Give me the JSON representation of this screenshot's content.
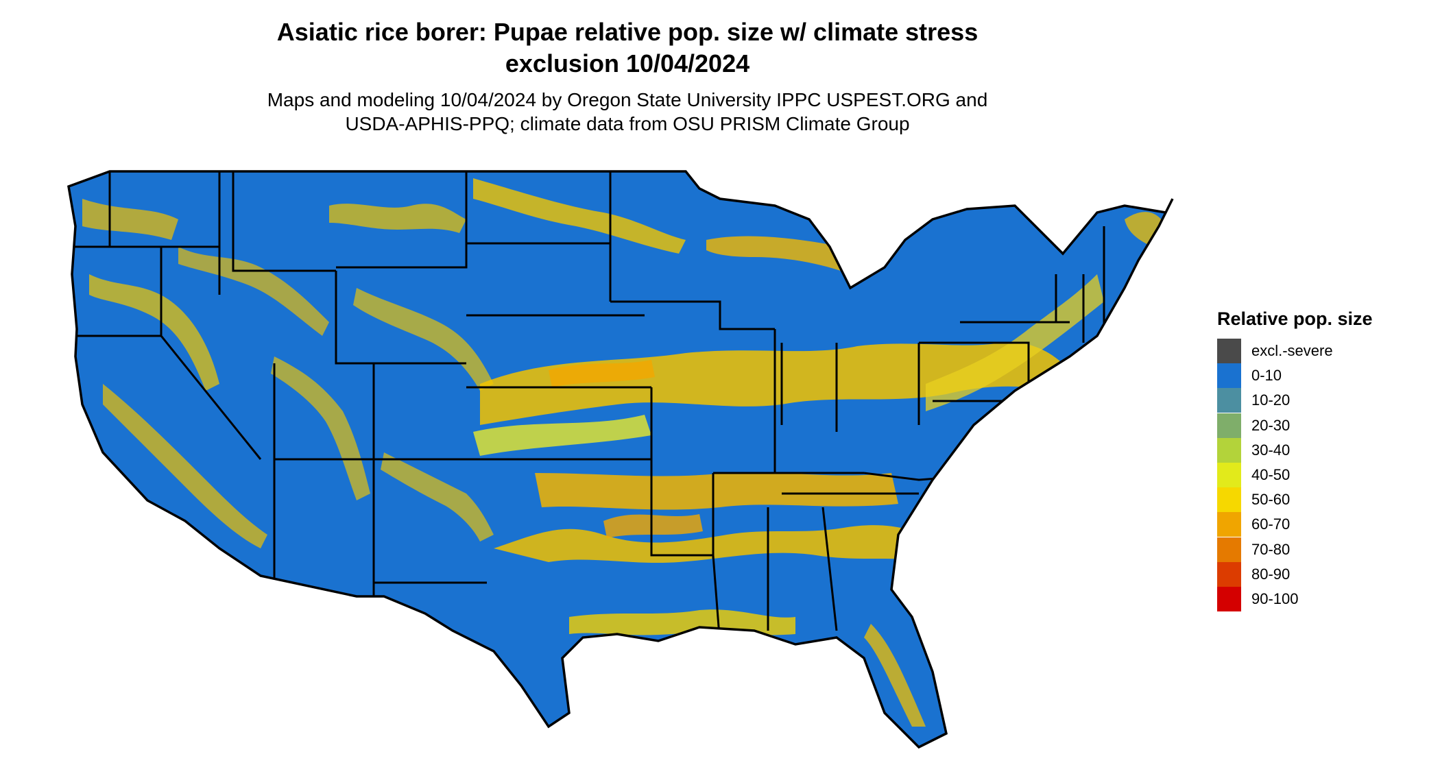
{
  "map": {
    "title_line1": "Asiatic rice borer: Pupae relative pop. size w/ climate stress",
    "title_line2": "exclusion 10/04/2024",
    "subtitle_line1": "Maps and modeling 10/04/2024 by Oregon State University IPPC USPEST.ORG and",
    "subtitle_line2": "USDA-APHIS-PPQ; climate data from OSU PRISM Climate Group",
    "base_color": "#1a72d0",
    "highlight_colors": [
      "#f2a900",
      "#f2d500",
      "#e8e82a",
      "#b3d33a",
      "#7fae6a"
    ]
  },
  "legend": {
    "title": "Relative pop. size",
    "items": [
      {
        "label": "excl.-severe",
        "color": "#4a4a4a"
      },
      {
        "label": "0-10",
        "color": "#1a72d0"
      },
      {
        "label": "10-20",
        "color": "#4c8fa1"
      },
      {
        "label": "20-30",
        "color": "#7fae6a"
      },
      {
        "label": "30-40",
        "color": "#b3d33a"
      },
      {
        "label": "40-50",
        "color": "#e2ea1b"
      },
      {
        "label": "50-60",
        "color": "#f6d800"
      },
      {
        "label": "60-70",
        "color": "#f0a500"
      },
      {
        "label": "70-80",
        "color": "#e57a00"
      },
      {
        "label": "80-90",
        "color": "#dc3c00"
      },
      {
        "label": "90-100",
        "color": "#d40000"
      }
    ]
  }
}
